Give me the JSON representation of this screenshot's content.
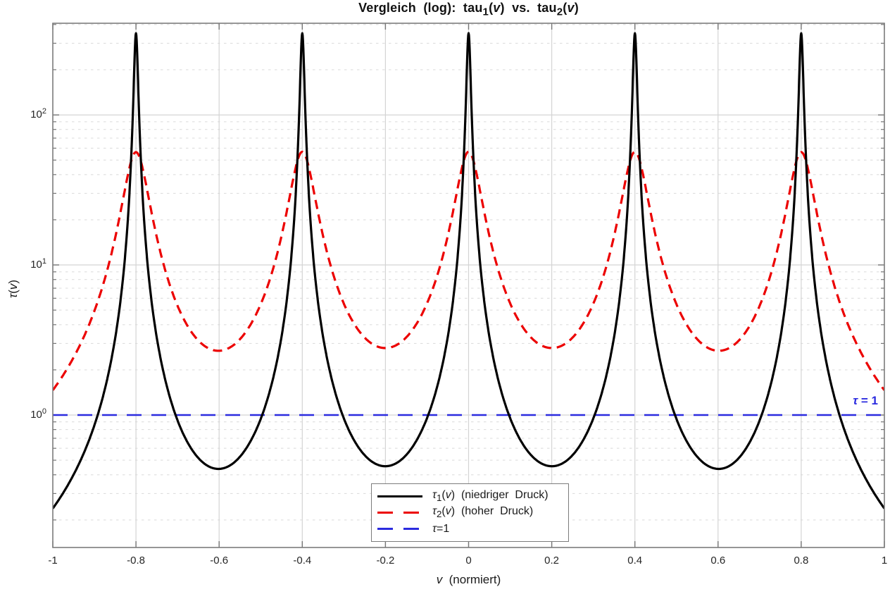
{
  "figure": {
    "title_html": "Vergleich&nbsp; (log):&nbsp; tau<sub>1</sub>(<i>v</i>)&nbsp; vs.&nbsp; tau<sub>2</sub>(<i>v</i>)"
  },
  "chart_data": {
    "type": "line",
    "title": "Vergleich (log): tau_1(v) vs. tau_2(v)",
    "xlabel": "v (normiert)",
    "xlabel_html": "<i>v</i>&nbsp; (normiert)",
    "ylabel": "tau(v)",
    "ylabel_html": "<i>τ</i>(<i>v</i>)",
    "x_axis": {
      "lim": [
        -1,
        1
      ],
      "ticks": [
        -1,
        -0.8,
        -0.6,
        -0.4,
        -0.2,
        0,
        0.2,
        0.4,
        0.6,
        0.8,
        1
      ],
      "tick_labels": [
        "-1",
        "-0.8",
        "-0.6",
        "-0.4",
        "-0.2",
        "0",
        "0.2",
        "0.4",
        "0.6",
        "0.8",
        "1"
      ]
    },
    "y_axis": {
      "scale": "log",
      "lim": [
        0.131,
        408
      ],
      "ticks": [
        1,
        10,
        100
      ],
      "tick_labels": [
        "10^0",
        "10^1",
        "10^2"
      ],
      "tick_labels_html": [
        "10<sup>0</sup>",
        "10<sup>1</sup>",
        "10<sup>2</sup>"
      ]
    },
    "grid": {
      "major": true,
      "y_minor_dotted": true,
      "x_minor": false
    },
    "line_centers": [
      -0.8,
      -0.4,
      0,
      0.4,
      0.8
    ],
    "period": 0.4,
    "series": [
      {
        "name": "tau1",
        "legend_label": "tau_1(v)  (niedriger Druck)",
        "legend_label_html": "<i>τ</i><sub>1</sub>(<i>v</i>)&nbsp; (niedriger&nbsp; Druck)",
        "color": "#000000",
        "style": "solid",
        "dash": null,
        "width": 3.2,
        "peak_value": 350,
        "min_value": 0.47,
        "model": {
          "kind": "lorentzian-sum",
          "centers": [
            -0.8,
            -0.4,
            0,
            0.4,
            0.8
          ],
          "amplitude": 350,
          "gamma": 0.0048
        }
      },
      {
        "name": "tau2",
        "legend_label": "tau_2(v)  (hoher Druck)",
        "legend_label_html": "<i>τ</i><sub>2</sub>(<i>v</i>)&nbsp; (hoher&nbsp; Druck)",
        "color": "#EC0000",
        "style": "dashed",
        "dash": [
          13,
          8
        ],
        "width": 3.2,
        "peak_value": 57,
        "min_value": 2.8,
        "model": {
          "kind": "lorentzian-sum",
          "centers": [
            -0.8,
            -0.4,
            0,
            0.4,
            0.8
          ],
          "amplitude": 56,
          "gamma": 0.03
        }
      },
      {
        "name": "tau-ref",
        "legend_label": "tau=1",
        "legend_label_html": "<i>τ</i>=1",
        "color": "#2B2BDF",
        "style": "dashed",
        "dash": [
          21,
          14
        ],
        "width": 2.4,
        "model": {
          "kind": "constant",
          "value": 1
        }
      }
    ],
    "annotation": {
      "text": "tau = 1",
      "text_html": "<i>τ</i> = 1",
      "x": 0.985,
      "y": 1.0,
      "color": "#2B2BDF"
    },
    "legend": {
      "position": "south"
    }
  }
}
